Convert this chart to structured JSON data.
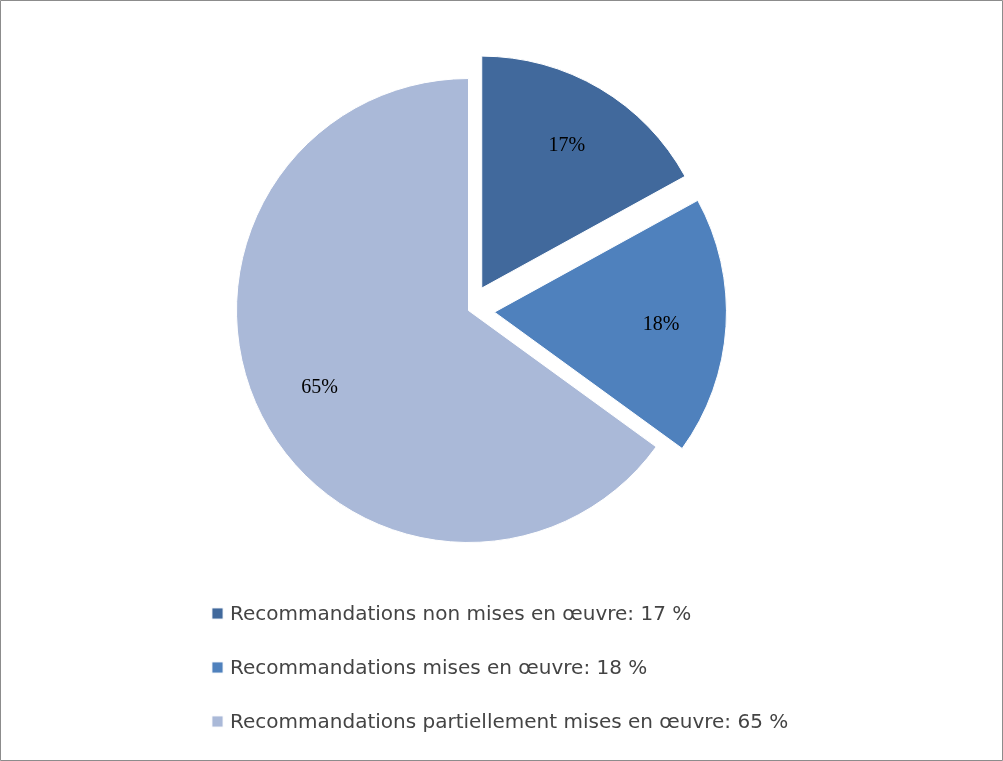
{
  "chart_data": {
    "type": "pie",
    "categories": [
      "Recommandations non mises en œuvre: 17 %",
      "Recommandations mises en œuvre: 18 %",
      "Recommandations partiellement mises en œuvre: 65 %"
    ],
    "values": [
      17,
      18,
      65
    ],
    "value_labels": [
      "17%",
      "18%",
      "65%"
    ],
    "colors": [
      "#41699c",
      "#4f81bd",
      "#aab9d8"
    ],
    "legend": "bottom"
  }
}
